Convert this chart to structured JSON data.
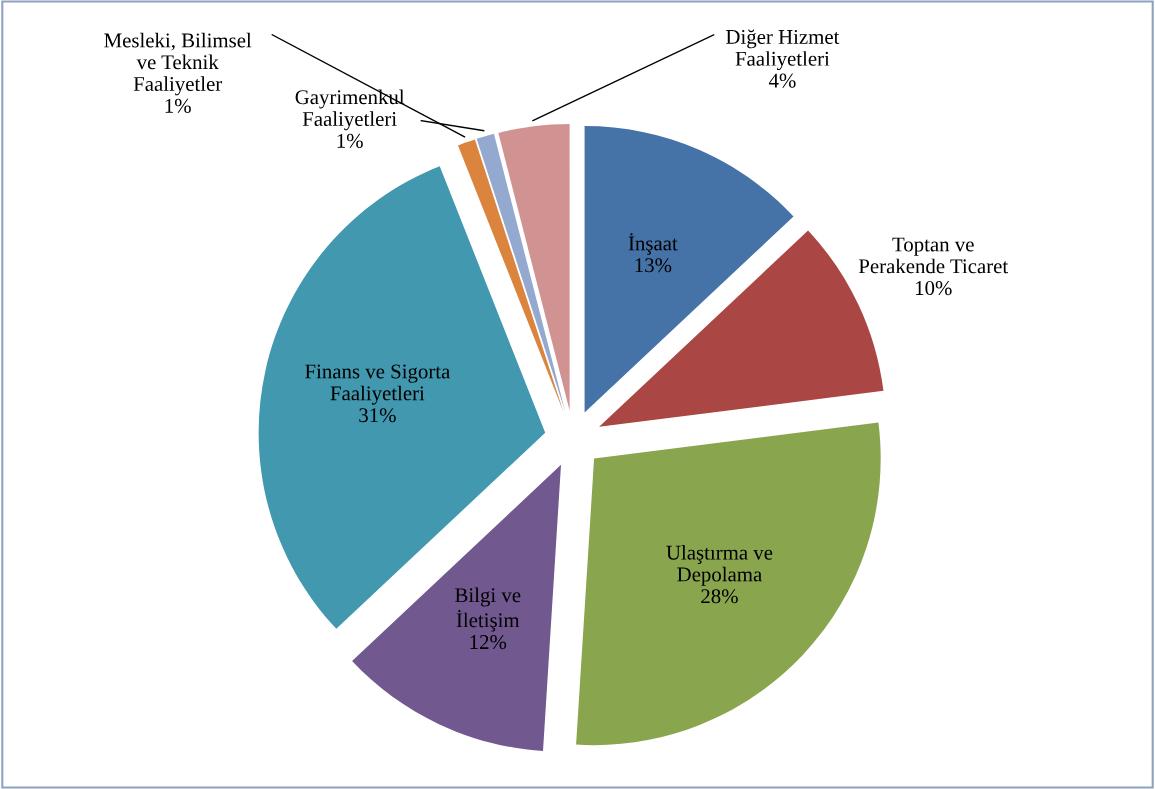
{
  "chart_data": {
    "type": "pie",
    "categories": [
      "İnşaat",
      "Toptan ve\nPerakende Ticaret",
      "Ulaştırma ve\nDepolama",
      "Bilgi ve\nİletişim",
      "Finans ve Sigorta\nFaaliyetleri",
      "Mesleki, Bilimsel\nve Teknik\nFaaliyetler",
      "Gayrimenkul\nFaaliyetleri",
      "Diğer Hizmet\nFaaliyetleri"
    ],
    "values": [
      13,
      10,
      28,
      12,
      31,
      1,
      1,
      4
    ],
    "value_labels": [
      "13%",
      "10%",
      "28%",
      "12%",
      "31%",
      "1%",
      "1%",
      "4%"
    ],
    "colors": [
      "#4572a7",
      "#aa4643",
      "#89a54e",
      "#71588f",
      "#4198af",
      "#db843d",
      "#93a9cf",
      "#d19392"
    ],
    "legend": false
  }
}
